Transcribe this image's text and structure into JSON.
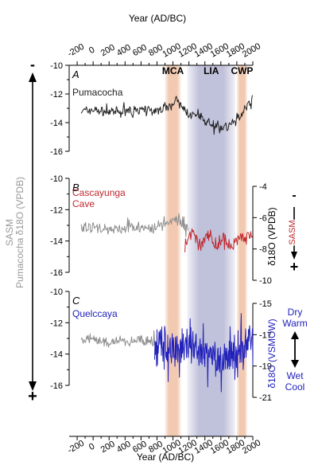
{
  "chart_data": {
    "type": "line",
    "x_axis": {
      "label": "Year (AD/BC)",
      "range": [
        -300,
        2000
      ],
      "ticks": [
        -200,
        0,
        200,
        400,
        600,
        800,
        1000,
        1200,
        1400,
        1600,
        1800,
        2000
      ],
      "tick_labels": [
        "-200",
        "0",
        "200",
        "400",
        "600",
        "800",
        "1000",
        "1200",
        "1400",
        "1600",
        "1800",
        "2000"
      ]
    },
    "shared_left_axis": {
      "label": "Pumacocha δ18O (VPDB)",
      "sasm_label": "SASM",
      "sasm_minus": "-",
      "sasm_plus": "+",
      "range": [
        -16,
        -10
      ],
      "ticks": [
        -10,
        -12,
        -14,
        -16
      ],
      "tick_labels": [
        "-10",
        "-12",
        "-14",
        "-16"
      ]
    },
    "periods": [
      {
        "label": "MCA",
        "start": 900,
        "end": 1100,
        "color": "#f0c3a8"
      },
      {
        "label": "LIA",
        "start": 1180,
        "end": 1780,
        "color": "#b9bad6"
      },
      {
        "label": "CWP",
        "start": 1800,
        "end": 1930,
        "color": "#f0c3a8"
      }
    ],
    "panels": [
      {
        "letter": "A",
        "series": [
          {
            "name": "Pumacocha",
            "color": "#222222",
            "x": [
              -150,
              0,
              200,
              400,
              600,
              800,
              900,
              1000,
              1050,
              1100,
              1200,
              1300,
              1400,
              1500,
              1600,
              1700,
              1800,
              1900,
              1960,
              2000
            ],
            "y": [
              -13.2,
              -13.1,
              -13.3,
              -13.2,
              -13.1,
              -13.2,
              -12.9,
              -12.7,
              -12.4,
              -12.9,
              -13.4,
              -13.6,
              -13.9,
              -14.1,
              -14.3,
              -14.2,
              -13.9,
              -13.0,
              -12.6,
              -12.3
            ]
          }
        ]
      },
      {
        "letter": "B",
        "right_axis": {
          "label": "δ18O (VPDB)",
          "range": [
            -10,
            -4
          ],
          "ticks": [
            -4,
            -6,
            -8,
            -10
          ],
          "tick_labels": [
            "-4",
            "-6",
            "-8",
            "-10"
          ],
          "sasm_label": "SASM",
          "sasm_minus": "-",
          "sasm_plus": "+"
        },
        "series": [
          {
            "name": "",
            "axis": "left",
            "color": "#8e8e8e",
            "x": [
              -150,
              0,
              200,
              400,
              600,
              800,
              900,
              1000,
              1050,
              1100,
              1200
            ],
            "y": [
              -13.2,
              -13.1,
              -13.3,
              -13.2,
              -13.1,
              -13.2,
              -12.9,
              -12.7,
              -12.5,
              -12.9,
              -13.2
            ]
          },
          {
            "name": "Cascayunga Cave",
            "axis": "right",
            "color": "#c0272d",
            "x": [
              1150,
              1200,
              1250,
              1300,
              1350,
              1400,
              1450,
              1500,
              1550,
              1600,
              1650,
              1700,
              1750,
              1800,
              1850,
              1900,
              1950,
              2000
            ],
            "y": [
              -7.9,
              -7.4,
              -7.0,
              -7.2,
              -7.7,
              -7.3,
              -7.0,
              -7.5,
              -7.8,
              -7.6,
              -7.3,
              -7.7,
              -7.9,
              -7.5,
              -7.2,
              -7.4,
              -7.2,
              -7.3
            ]
          }
        ]
      },
      {
        "letter": "C",
        "right_axis": {
          "label": "δ18O (VSMOW)",
          "range": [
            -21,
            -15
          ],
          "ticks": [
            -15,
            -17,
            -19,
            -21
          ],
          "tick_labels": [
            "-15",
            "-17",
            "-19",
            "-21"
          ],
          "upper_label": [
            "Dry",
            "Warm"
          ],
          "lower_label": [
            "Wet",
            "Cool"
          ]
        },
        "series": [
          {
            "name": "",
            "axis": "left",
            "color": "#8e8e8e",
            "x": [
              -150,
              0,
              200,
              400,
              600,
              700,
              800
            ],
            "y": [
              -13.2,
              -13.1,
              -13.3,
              -13.2,
              -13.1,
              -13.2,
              -13.3
            ]
          },
          {
            "name": "Quelccaya",
            "axis": "right",
            "color": "#2222bb",
            "x": [
              770,
              850,
              950,
              1050,
              1150,
              1250,
              1350,
              1450,
              1550,
              1650,
              1750,
              1850,
              1950,
              2000
            ],
            "y": [
              -17.9,
              -17.8,
              -17.6,
              -17.5,
              -17.7,
              -18.0,
              -18.2,
              -18.2,
              -18.3,
              -18.6,
              -18.5,
              -18.2,
              -17.4,
              -17.1
            ]
          }
        ]
      }
    ]
  }
}
